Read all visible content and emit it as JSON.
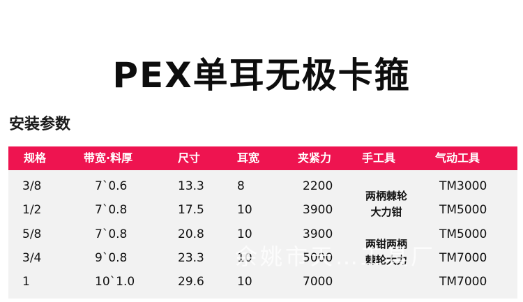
{
  "title": "PEX单耳无极卡箍",
  "section_title": "安装参数",
  "header_color": "#ee1450",
  "columns": [
    "规格",
    "带宽·料厚",
    "尺寸",
    "耳宽",
    "夹紧力",
    "手工具",
    "气动工具"
  ],
  "rows": [
    {
      "spec": "3/8",
      "band": "7`0.6",
      "size": "13.3",
      "ear": "8",
      "force": "2200",
      "pneumatic": "TM3000"
    },
    {
      "spec": "1/2",
      "band": "7`0.8",
      "size": "17.5",
      "ear": "10",
      "force": "3900",
      "pneumatic": "TM5000"
    },
    {
      "spec": "5/8",
      "band": "7`0.8",
      "size": "20.8",
      "ear": "10",
      "force": "3900",
      "pneumatic": "TM5000"
    },
    {
      "spec": "3/4",
      "band": "9`0.8",
      "size": "23.3",
      "ear": "10",
      "force": "5000",
      "pneumatic": "TM7000"
    },
    {
      "spec": "1",
      "band": "10`1.0",
      "size": "29.6",
      "ear": "10",
      "force": "7000",
      "pneumatic": "TM7000"
    }
  ],
  "hand_tools": [
    {
      "line1": "两柄棘轮",
      "line2": "大力钳"
    },
    {
      "line1": "两钳两柄",
      "line2": "棘轮大力"
    }
  ],
  "watermark": "余姚市天…工具厂"
}
